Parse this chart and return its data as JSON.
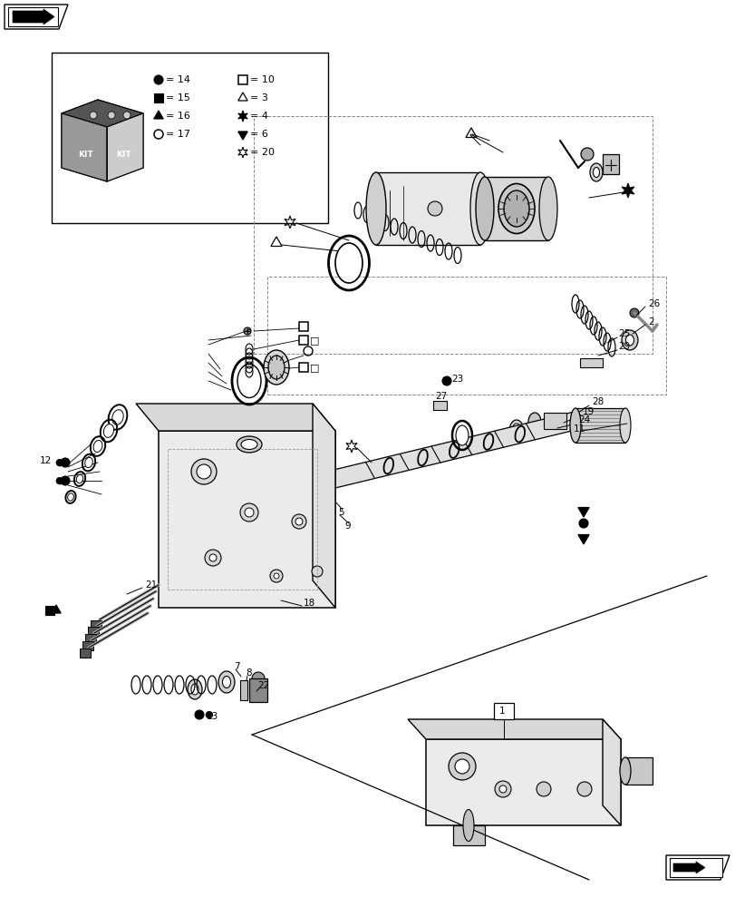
{
  "bg_color": "#ffffff",
  "lc": "#000000",
  "gray1": "#e8e8e8",
  "gray2": "#d0d0d0",
  "gray3": "#b0b0b0"
}
